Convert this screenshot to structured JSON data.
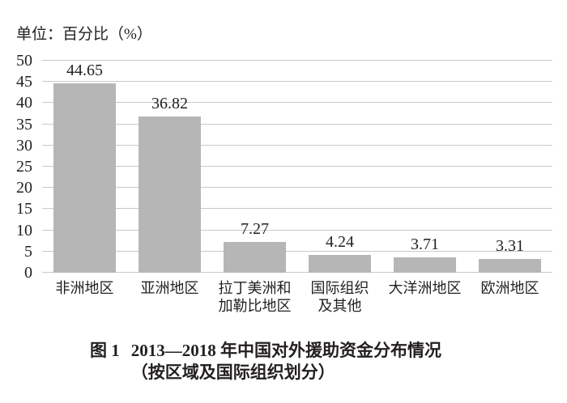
{
  "figure": {
    "unit_label": "单位：百分比（%）",
    "caption": {
      "prefix": "图 1",
      "line1": "2013—2018 年中国对外援助资金分布情况",
      "line2": "（按区域及国际组织划分）"
    }
  },
  "colors": {
    "bar": "#b6b6b6",
    "gridline": "#c9c9c9",
    "text": "#231f20",
    "background": "#ffffff"
  },
  "chart_data": {
    "type": "bar",
    "title": "单位：百分比（%）",
    "categories": [
      "非洲地区",
      "亚洲地区",
      "拉丁美洲和加勒比地区",
      "国际组织及其他",
      "大洋洲地区",
      "欧洲地区"
    ],
    "category_lines": [
      [
        "非洲地区"
      ],
      [
        "亚洲地区"
      ],
      [
        "拉丁美洲和",
        "加勒比地区"
      ],
      [
        "国际组织",
        "及其他"
      ],
      [
        "大洋洲地区"
      ],
      [
        "欧洲地区"
      ]
    ],
    "values": [
      44.65,
      36.82,
      7.27,
      4.24,
      3.71,
      3.31
    ],
    "value_labels": [
      "44.65",
      "36.82",
      "7.27",
      "4.24",
      "3.71",
      "3.31"
    ],
    "xlabel": "",
    "ylabel": "百分比（%）",
    "ylim": [
      0,
      50
    ],
    "ytick_step": 5,
    "yticks": [
      0,
      5,
      10,
      15,
      20,
      25,
      30,
      35,
      40,
      45,
      50
    ],
    "grid": true,
    "legend": false,
    "caption_line1": "图 1　2013—2018 年中国对外援助资金分布情况",
    "caption_line2": "（按区域及国际组织划分）"
  }
}
